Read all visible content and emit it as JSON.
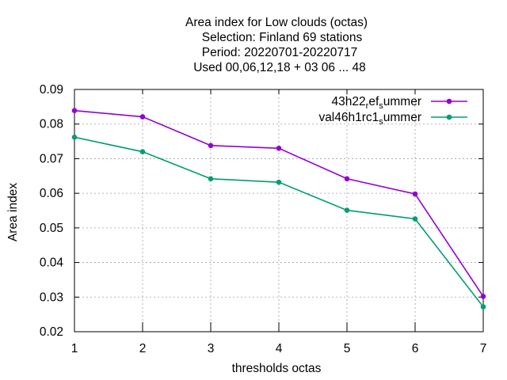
{
  "chart_data": {
    "type": "line",
    "title_lines": [
      "Area index  for Low clouds (octas)",
      "Selection: Finland     69 stations",
      "Period: 20220701-20220717",
      "Used  00,06,12,18  + 03 06 ... 48"
    ],
    "xlabel": "thresholds octas",
    "ylabel": "Area index",
    "x": [
      1,
      2,
      3,
      4,
      5,
      6,
      7
    ],
    "xlim": [
      1,
      7
    ],
    "ylim": [
      0.02,
      0.09
    ],
    "x_ticks": [
      1,
      2,
      3,
      4,
      5,
      6,
      7
    ],
    "y_ticks": [
      0.02,
      0.03,
      0.04,
      0.05,
      0.06,
      0.07,
      0.08,
      0.09
    ],
    "x_tick_labels": [
      "1",
      "2",
      "3",
      "4",
      "5",
      "6",
      "7"
    ],
    "y_tick_labels": [
      "0.02",
      "0.03",
      "0.04",
      "0.05",
      "0.06",
      "0.07",
      "0.08",
      "0.09"
    ],
    "grid": true,
    "legend_position": "top-right",
    "series": [
      {
        "name": "43h22_ref_summer",
        "legend_parts": [
          [
            "43h22",
            "n"
          ],
          [
            "r",
            "s"
          ],
          [
            "ef",
            "n"
          ],
          [
            "s",
            "s"
          ],
          [
            "ummer",
            "n"
          ]
        ],
        "color": "#9400d3",
        "values": [
          0.0839,
          0.0821,
          0.0738,
          0.073,
          0.0642,
          0.0598,
          0.0302
        ]
      },
      {
        "name": "val46h1rc1_summer",
        "legend_parts": [
          [
            "val46h1rc1",
            "n"
          ],
          [
            "s",
            "s"
          ],
          [
            "ummer",
            "n"
          ]
        ],
        "color": "#009e73",
        "values": [
          0.0762,
          0.072,
          0.0642,
          0.0632,
          0.0551,
          0.0526,
          0.0272
        ]
      }
    ]
  }
}
